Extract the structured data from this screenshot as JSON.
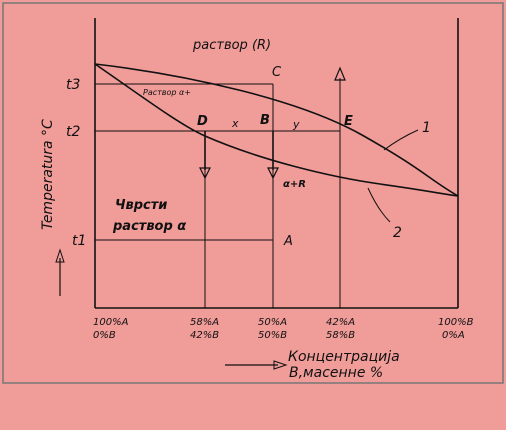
{
  "diagram": {
    "region_liquid": "раствор (R)",
    "region_solid_line1": "Чврсти",
    "region_solid_line2": "раствор α",
    "region_mixed": "Раствор α+",
    "mix_label": "α+R",
    "y_axis_label": "Temperatura °C",
    "temperatures": {
      "t3": "t3",
      "t2": "t2",
      "t1": "t1"
    },
    "points": {
      "A": "A",
      "B": "B",
      "C": "C",
      "D": "D",
      "E": "E",
      "x": "x",
      "y": "y"
    },
    "curve_labels": {
      "one": "1",
      "two": "2"
    },
    "x_ticks": [
      {
        "line1": "100%A",
        "line2": "0%B"
      },
      {
        "line1": "58%A",
        "line2": "42%B"
      },
      {
        "line1": "50%A",
        "line2": "50%B"
      },
      {
        "line1": "42%A",
        "line2": "58%B"
      },
      {
        "line1": "100%B",
        "line2": "0%A"
      }
    ],
    "x_axis_label_line1": "Концентрација",
    "x_axis_label_line2": "B,масенне %"
  }
}
